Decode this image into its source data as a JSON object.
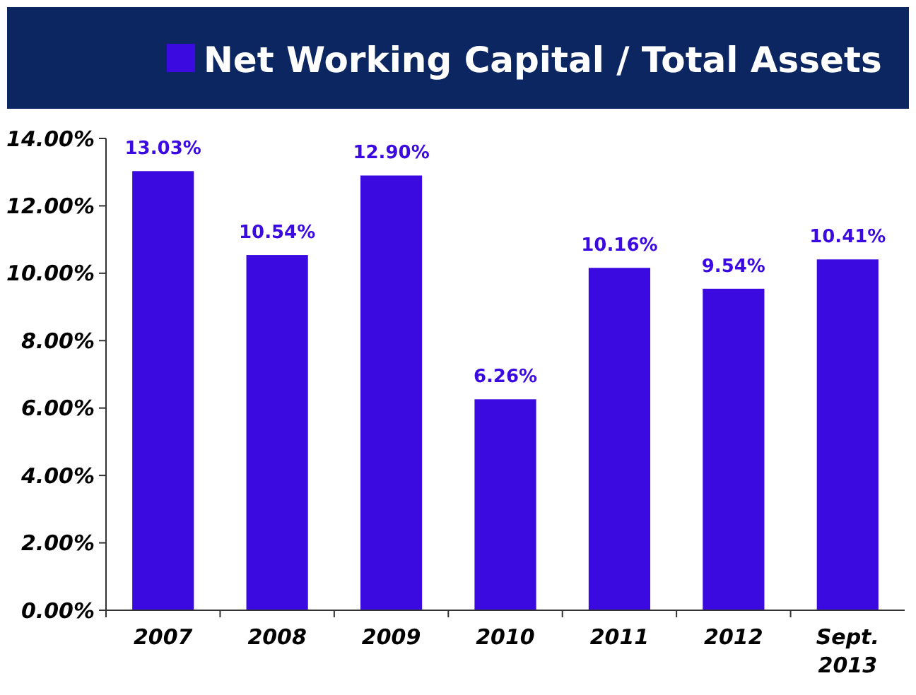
{
  "chart_data": {
    "type": "bar",
    "categories": [
      "2007",
      "2008",
      "2009",
      "2010",
      "2011",
      "2012",
      "Sept. 2013"
    ],
    "series": [
      {
        "name": "Net Working Capital / Total Assets",
        "color": "#3a0ae0",
        "values": [
          13.03,
          10.54,
          12.9,
          6.26,
          10.16,
          9.54,
          10.41
        ]
      }
    ],
    "value_labels": [
      "13.03%",
      "10.54%",
      "12.90%",
      "6.26%",
      "10.16%",
      "9.54%",
      "10.41%"
    ],
    "ylim": [
      0,
      14
    ],
    "yticks": [
      {
        "value": 0,
        "label": "0.00%"
      },
      {
        "value": 2,
        "label": "2.00%"
      },
      {
        "value": 4,
        "label": "4.00%"
      },
      {
        "value": 6,
        "label": "6.00%"
      },
      {
        "value": 8,
        "label": "8.00%"
      },
      {
        "value": 10,
        "label": "10.00%"
      },
      {
        "value": 12,
        "label": "12.00%"
      },
      {
        "value": 14,
        "label": "14.00%"
      }
    ],
    "legend": "top",
    "grid": false
  }
}
